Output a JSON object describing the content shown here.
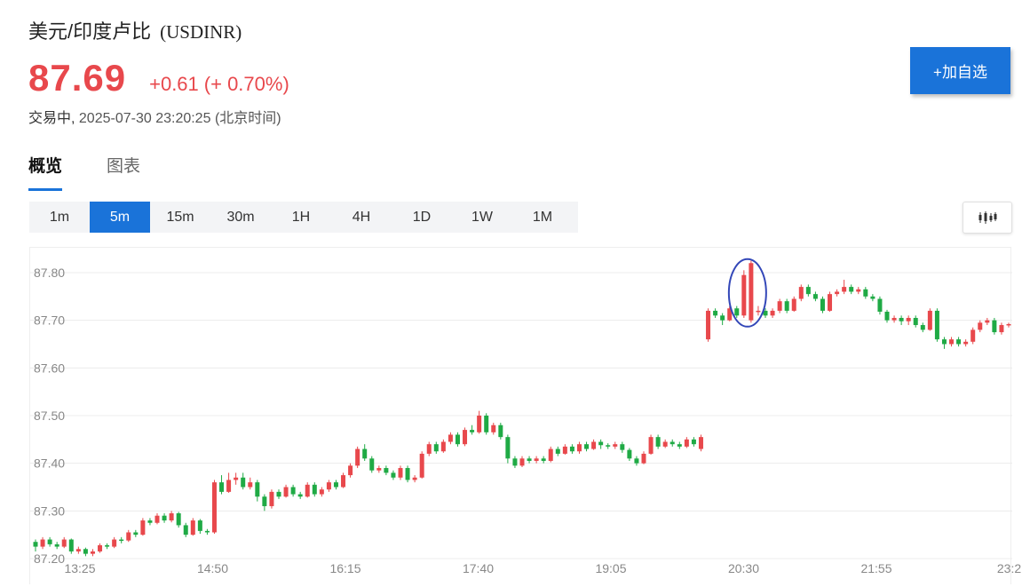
{
  "header": {
    "name": "美元/印度卢比",
    "symbol": "(USDINR)",
    "price": "87.69",
    "change": "+0.61",
    "change_pct": "(+ 0.70%)",
    "status": "交易中,",
    "timestamp": "2025-07-30 23:20:25",
    "timezone": "(北京时间)",
    "watch_label": "+加自选"
  },
  "tabs": [
    {
      "label": "概览",
      "active": true
    },
    {
      "label": "图表",
      "active": false
    }
  ],
  "intervals": [
    {
      "label": "1m",
      "active": false
    },
    {
      "label": "5m",
      "active": true
    },
    {
      "label": "15m",
      "active": false
    },
    {
      "label": "30m",
      "active": false
    },
    {
      "label": "1H",
      "active": false
    },
    {
      "label": "4H",
      "active": false
    },
    {
      "label": "1D",
      "active": false
    },
    {
      "label": "1W",
      "active": false
    },
    {
      "label": "1M",
      "active": false
    }
  ],
  "chart_type_icon": "candlestick-icon",
  "colors": {
    "up": "#e8484c",
    "down": "#1faa45",
    "accent": "#1a73d9",
    "highlight": "#3347b8"
  },
  "chart_data": {
    "type": "candlestick",
    "y_ticks": [
      "87.80",
      "87.70",
      "87.60",
      "87.50",
      "87.40",
      "87.30",
      "87.20"
    ],
    "ylim": [
      87.2,
      87.84
    ],
    "x_ticks": [
      "13:25",
      "14:50",
      "16:15",
      "17:40",
      "19:05",
      "20:30",
      "21:55",
      "23:2"
    ],
    "grid": true,
    "highlight_note": "circled spike near 20:30",
    "candles": [
      [
        87.235,
        87.225,
        87.24,
        87.215
      ],
      [
        87.225,
        87.24,
        87.245,
        87.22
      ],
      [
        87.24,
        87.23,
        87.245,
        87.225
      ],
      [
        87.23,
        87.225,
        87.235,
        87.22
      ],
      [
        87.225,
        87.24,
        87.245,
        87.222
      ],
      [
        87.24,
        87.215,
        87.242,
        87.21
      ],
      [
        87.215,
        87.22,
        87.225,
        87.21
      ],
      [
        87.22,
        87.21,
        87.223,
        87.205
      ],
      [
        87.21,
        87.215,
        87.22,
        87.205
      ],
      [
        87.215,
        87.228,
        87.232,
        87.212
      ],
      [
        87.228,
        87.225,
        87.232,
        87.22
      ],
      [
        87.225,
        87.24,
        87.245,
        87.222
      ],
      [
        87.24,
        87.238,
        87.245,
        87.232
      ],
      [
        87.238,
        87.255,
        87.26,
        87.235
      ],
      [
        87.255,
        87.25,
        87.26,
        87.245
      ],
      [
        87.25,
        87.28,
        87.285,
        87.248
      ],
      [
        87.28,
        87.275,
        87.285,
        87.27
      ],
      [
        87.275,
        87.29,
        87.295,
        87.272
      ],
      [
        87.29,
        87.28,
        87.295,
        87.275
      ],
      [
        87.28,
        87.295,
        87.3,
        87.276
      ],
      [
        87.295,
        87.27,
        87.298,
        87.265
      ],
      [
        87.27,
        87.25,
        87.275,
        87.245
      ],
      [
        87.25,
        87.28,
        87.285,
        87.248
      ],
      [
        87.28,
        87.258,
        87.283,
        87.252
      ],
      [
        87.258,
        87.255,
        87.262,
        87.25
      ],
      [
        87.255,
        87.36,
        87.365,
        87.252
      ],
      [
        87.36,
        87.34,
        87.375,
        87.335
      ],
      [
        87.34,
        87.365,
        87.38,
        87.338
      ],
      [
        87.365,
        87.37,
        87.38,
        87.355
      ],
      [
        87.37,
        87.35,
        87.38,
        87.345
      ],
      [
        87.35,
        87.36,
        87.37,
        87.345
      ],
      [
        87.36,
        87.33,
        87.365,
        87.32
      ],
      [
        87.33,
        87.31,
        87.335,
        87.3
      ],
      [
        87.31,
        87.34,
        87.345,
        87.305
      ],
      [
        87.34,
        87.33,
        87.345,
        87.325
      ],
      [
        87.33,
        87.35,
        87.355,
        87.328
      ],
      [
        87.35,
        87.335,
        87.355,
        87.33
      ],
      [
        87.335,
        87.33,
        87.34,
        87.325
      ],
      [
        87.33,
        87.355,
        87.36,
        87.328
      ],
      [
        87.355,
        87.335,
        87.36,
        87.33
      ],
      [
        87.335,
        87.345,
        87.35,
        87.33
      ],
      [
        87.345,
        87.36,
        87.365,
        87.34
      ],
      [
        87.36,
        87.35,
        87.365,
        87.345
      ],
      [
        87.35,
        87.375,
        87.38,
        87.348
      ],
      [
        87.375,
        87.395,
        87.4,
        87.37
      ],
      [
        87.395,
        87.43,
        87.435,
        87.39
      ],
      [
        87.43,
        87.41,
        87.44,
        87.405
      ],
      [
        87.41,
        87.385,
        87.415,
        87.38
      ],
      [
        87.385,
        87.39,
        87.395,
        87.38
      ],
      [
        87.39,
        87.38,
        87.395,
        87.375
      ],
      [
        87.38,
        87.37,
        87.385,
        87.365
      ],
      [
        87.37,
        87.39,
        87.395,
        87.365
      ],
      [
        87.39,
        87.365,
        87.395,
        87.36
      ],
      [
        87.365,
        87.37,
        87.375,
        87.36
      ],
      [
        87.37,
        87.42,
        87.425,
        87.368
      ],
      [
        87.42,
        87.44,
        87.445,
        87.415
      ],
      [
        87.44,
        87.425,
        87.445,
        87.42
      ],
      [
        87.425,
        87.445,
        87.45,
        87.422
      ],
      [
        87.445,
        87.46,
        87.465,
        87.44
      ],
      [
        87.46,
        87.44,
        87.465,
        87.435
      ],
      [
        87.44,
        87.47,
        87.475,
        87.436
      ],
      [
        87.47,
        87.465,
        87.48,
        87.46
      ],
      [
        87.465,
        87.5,
        87.51,
        87.462
      ],
      [
        87.5,
        87.465,
        87.505,
        87.46
      ],
      [
        87.465,
        87.48,
        87.485,
        87.46
      ],
      [
        87.48,
        87.455,
        87.485,
        87.45
      ],
      [
        87.455,
        87.41,
        87.46,
        87.4
      ],
      [
        87.41,
        87.395,
        87.415,
        87.39
      ],
      [
        87.395,
        87.41,
        87.415,
        87.392
      ],
      [
        87.41,
        87.405,
        87.415,
        87.4
      ],
      [
        87.405,
        87.41,
        87.415,
        87.4
      ],
      [
        87.41,
        87.405,
        87.415,
        87.4
      ],
      [
        87.405,
        87.43,
        87.435,
        87.402
      ],
      [
        87.43,
        87.42,
        87.435,
        87.415
      ],
      [
        87.42,
        87.435,
        87.44,
        87.418
      ],
      [
        87.435,
        87.425,
        87.44,
        87.42
      ],
      [
        87.425,
        87.44,
        87.445,
        87.42
      ],
      [
        87.44,
        87.43,
        87.445,
        87.425
      ],
      [
        87.43,
        87.445,
        87.45,
        87.428
      ],
      [
        87.445,
        87.438,
        87.45,
        87.43
      ],
      [
        87.438,
        87.435,
        87.442,
        87.43
      ],
      [
        87.435,
        87.44,
        87.445,
        87.43
      ],
      [
        87.44,
        87.428,
        87.445,
        87.422
      ],
      [
        87.428,
        87.41,
        87.432,
        87.405
      ],
      [
        87.41,
        87.4,
        87.415,
        87.395
      ],
      [
        87.4,
        87.42,
        87.425,
        87.398
      ],
      [
        87.42,
        87.455,
        87.46,
        87.418
      ],
      [
        87.455,
        87.435,
        87.46,
        87.43
      ],
      [
        87.435,
        87.445,
        87.45,
        87.432
      ],
      [
        87.445,
        87.44,
        87.45,
        87.435
      ],
      [
        87.44,
        87.435,
        87.445,
        87.43
      ],
      [
        87.435,
        87.45,
        87.455,
        87.432
      ],
      [
        87.45,
        87.44,
        87.455,
        87.435
      ],
      [
        87.43,
        87.455,
        87.46,
        87.425
      ],
      [
        87.66,
        87.72,
        87.725,
        87.655
      ],
      [
        87.72,
        87.71,
        87.725,
        87.705
      ],
      [
        87.71,
        87.7,
        87.715,
        87.69
      ],
      [
        87.7,
        87.725,
        87.73,
        87.698
      ],
      [
        87.725,
        87.71,
        87.73,
        87.705
      ],
      [
        87.71,
        87.795,
        87.805,
        87.705
      ],
      [
        87.7,
        87.82,
        87.825,
        87.695
      ],
      [
        87.72,
        87.72,
        87.73,
        87.71
      ],
      [
        87.72,
        87.71,
        87.725,
        87.705
      ],
      [
        87.71,
        87.72,
        87.725,
        87.705
      ],
      [
        87.72,
        87.74,
        87.745,
        87.715
      ],
      [
        87.74,
        87.72,
        87.745,
        87.715
      ],
      [
        87.72,
        87.745,
        87.75,
        87.718
      ],
      [
        87.745,
        87.77,
        87.775,
        87.74
      ],
      [
        87.77,
        87.755,
        87.775,
        87.75
      ],
      [
        87.755,
        87.745,
        87.76,
        87.74
      ],
      [
        87.745,
        87.72,
        87.75,
        87.715
      ],
      [
        87.72,
        87.755,
        87.76,
        87.718
      ],
      [
        87.755,
        87.76,
        87.765,
        87.75
      ],
      [
        87.76,
        87.77,
        87.785,
        87.755
      ],
      [
        87.77,
        87.76,
        87.775,
        87.755
      ],
      [
        87.76,
        87.765,
        87.77,
        87.755
      ],
      [
        87.765,
        87.75,
        87.77,
        87.745
      ],
      [
        87.75,
        87.745,
        87.755,
        87.74
      ],
      [
        87.745,
        87.718,
        87.75,
        87.712
      ],
      [
        87.718,
        87.7,
        87.722,
        87.695
      ],
      [
        87.7,
        87.705,
        87.71,
        87.695
      ],
      [
        87.705,
        87.698,
        87.71,
        87.69
      ],
      [
        87.698,
        87.705,
        87.71,
        87.69
      ],
      [
        87.705,
        87.69,
        87.71,
        87.685
      ],
      [
        87.69,
        87.68,
        87.695,
        87.675
      ],
      [
        87.68,
        87.72,
        87.725,
        87.678
      ],
      [
        87.72,
        87.66,
        87.725,
        87.655
      ],
      [
        87.66,
        87.65,
        87.665,
        87.64
      ],
      [
        87.65,
        87.66,
        87.665,
        87.645
      ],
      [
        87.66,
        87.65,
        87.665,
        87.645
      ],
      [
        87.65,
        87.655,
        87.66,
        87.645
      ],
      [
        87.655,
        87.68,
        87.685,
        87.65
      ],
      [
        87.68,
        87.695,
        87.7,
        87.675
      ],
      [
        87.695,
        87.7,
        87.705,
        87.69
      ],
      [
        87.7,
        87.675,
        87.705,
        87.67
      ],
      [
        87.675,
        87.69,
        87.695,
        87.67
      ],
      [
        87.69,
        87.692,
        87.695,
        87.685
      ]
    ]
  }
}
